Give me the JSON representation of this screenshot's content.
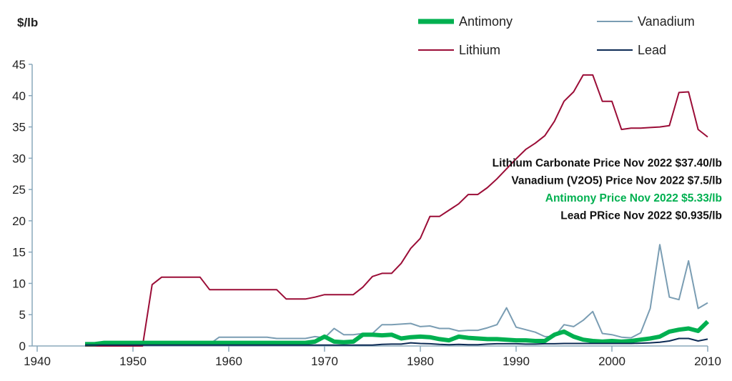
{
  "chart_data": {
    "type": "line",
    "ylabel": "$/lb",
    "xlim": [
      1940,
      2010
    ],
    "ylim": [
      0,
      45
    ],
    "x_ticks": [
      1940,
      1950,
      1960,
      1970,
      1980,
      1990,
      2000,
      2010
    ],
    "y_ticks": [
      0,
      5,
      10,
      15,
      20,
      25,
      30,
      35,
      40,
      45
    ],
    "grid": false,
    "legend_placement": "top-right",
    "x_start": 1945,
    "series": [
      {
        "name": "Antimony",
        "color": "#00b050",
        "values": [
          0.3,
          0.3,
          0.5,
          0.5,
          0.5,
          0.5,
          0.5,
          0.5,
          0.5,
          0.5,
          0.5,
          0.5,
          0.5,
          0.5,
          0.5,
          0.5,
          0.5,
          0.5,
          0.5,
          0.5,
          0.5,
          0.5,
          0.5,
          0.5,
          0.7,
          1.5,
          0.7,
          0.6,
          0.7,
          1.8,
          1.8,
          1.7,
          1.8,
          1.2,
          1.4,
          1.5,
          1.4,
          1.1,
          0.9,
          1.5,
          1.3,
          1.2,
          1.1,
          1.1,
          1.0,
          0.9,
          0.9,
          0.8,
          0.8,
          1.8,
          2.3,
          1.5,
          1.0,
          0.8,
          0.7,
          0.8,
          0.7,
          0.8,
          1.0,
          1.2,
          1.5,
          2.3,
          2.6,
          2.8,
          2.4,
          3.9
        ]
      },
      {
        "name": "Vanadium",
        "color": "#7a9db3",
        "values": [
          0.3,
          0.3,
          0.3,
          0.3,
          0.3,
          0.3,
          0.3,
          0.3,
          0.3,
          0.3,
          0.3,
          0.3,
          0.3,
          0.3,
          1.4,
          1.4,
          1.4,
          1.4,
          1.4,
          1.4,
          1.2,
          1.2,
          1.2,
          1.2,
          1.5,
          1.3,
          2.8,
          1.8,
          1.8,
          2.0,
          2.0,
          3.4,
          3.4,
          3.5,
          3.6,
          3.1,
          3.2,
          2.8,
          2.8,
          2.4,
          2.5,
          2.5,
          2.9,
          3.4,
          6.1,
          3.0,
          2.6,
          2.2,
          1.5,
          1.5,
          3.4,
          3.1,
          4.1,
          5.5,
          2.0,
          1.8,
          1.4,
          1.3,
          2.1,
          6.0,
          16.2,
          7.8,
          7.4,
          13.6,
          6.0,
          6.9
        ]
      },
      {
        "name": "Lithium",
        "color": "#9b0d37",
        "values": [
          0,
          0,
          0,
          0,
          0,
          0,
          0,
          9.8,
          11,
          11,
          11,
          11,
          11,
          9,
          9,
          9,
          9,
          9,
          9,
          9,
          9,
          7.5,
          7.5,
          7.5,
          7.8,
          8.2,
          8.2,
          8.2,
          8.2,
          9.4,
          11.1,
          11.6,
          11.6,
          13.2,
          15.6,
          17.2,
          20.7,
          20.7,
          21.7,
          22.7,
          24.2,
          24.2,
          25.3,
          26.7,
          28.3,
          29.9,
          31.4,
          32.4,
          33.6,
          35.9,
          39.1,
          40.6,
          43.3,
          43.3,
          39.1,
          39.1,
          34.6,
          34.8,
          34.8,
          34.9,
          35.0,
          35.2,
          40.5,
          40.6,
          34.6,
          33.4
        ]
      },
      {
        "name": "Lead",
        "color": "#0d2b55",
        "values": [
          0.15,
          0.15,
          0.15,
          0.15,
          0.15,
          0.15,
          0.15,
          0.15,
          0.15,
          0.15,
          0.15,
          0.15,
          0.15,
          0.15,
          0.15,
          0.15,
          0.15,
          0.15,
          0.15,
          0.15,
          0.15,
          0.15,
          0.15,
          0.15,
          0.15,
          0.15,
          0.15,
          0.15,
          0.15,
          0.15,
          0.15,
          0.25,
          0.3,
          0.3,
          0.5,
          0.4,
          0.35,
          0.25,
          0.2,
          0.25,
          0.2,
          0.2,
          0.3,
          0.35,
          0.35,
          0.35,
          0.3,
          0.3,
          0.35,
          0.35,
          0.4,
          0.4,
          0.4,
          0.4,
          0.4,
          0.4,
          0.4,
          0.4,
          0.45,
          0.5,
          0.6,
          0.8,
          1.2,
          1.2,
          0.8,
          1.1
        ]
      }
    ],
    "annotations": [
      {
        "text": "Lithium Carbonate Price Nov 2022 $37.40/lb",
        "color": "#111111"
      },
      {
        "text": "Vanadium (V2O5) Price Nov 2022 $7.5/lb",
        "color": "#111111"
      },
      {
        "text": "Antimony Price Nov 2022 $5.33/lb",
        "color": "#00b050"
      },
      {
        "text": "Lead PRice Nov 2022 $0.935/lb",
        "color": "#111111"
      }
    ],
    "axis_color": "#8aa8bb",
    "ylabel_color": "#7f9fb0"
  }
}
